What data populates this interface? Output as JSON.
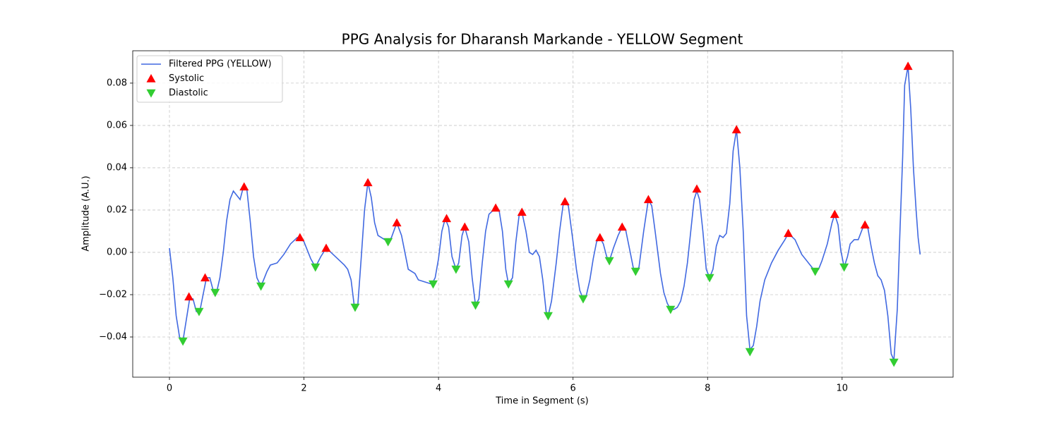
{
  "chart_data": {
    "type": "line",
    "title": "PPG Analysis for Dharansh Markande - YELLOW Segment",
    "x_label": "Time in Segment (s)",
    "y_label": "Amplitude (A.U.)",
    "xlim": [
      -0.546,
      11.65
    ],
    "ylim": [
      -0.059,
      0.0953
    ],
    "xticks": [
      0,
      2,
      4,
      6,
      8,
      10
    ],
    "yticks": [
      {
        "value": -0.04,
        "label": "−0.04"
      },
      {
        "value": -0.02,
        "label": "−0.02"
      },
      {
        "value": 0,
        "label": "0.00"
      },
      0.02,
      0.04,
      0.06,
      0.08
    ],
    "grid": true,
    "legend_loc": "upper left",
    "series": [
      {
        "name": "Filtered PPG (YELLOW)",
        "color": "#4169e1",
        "style": "line",
        "x": [
          0,
          0.05,
          0.1,
          0.15,
          0.2,
          0.25,
          0.3,
          0.35,
          0.4,
          0.45,
          0.5,
          0.55,
          0.6,
          0.65,
          0.7,
          0.75,
          0.8,
          0.85,
          0.9,
          0.95,
          1.0,
          1.05,
          1.1,
          1.15,
          1.2,
          1.25,
          1.3,
          1.36,
          1.4,
          1.45,
          1.5,
          1.6,
          1.7,
          1.8,
          1.9,
          1.94,
          2.0,
          2.1,
          2.17,
          2.25,
          2.33,
          2.4,
          2.5,
          2.6,
          2.65,
          2.7,
          2.75,
          2.8,
          2.85,
          2.9,
          2.95,
          3.0,
          3.05,
          3.1,
          3.2,
          3.25,
          3.3,
          3.38,
          3.45,
          3.5,
          3.55,
          3.65,
          3.7,
          3.8,
          3.9,
          3.95,
          4.0,
          4.05,
          4.1,
          4.15,
          4.2,
          4.26,
          4.3,
          4.35,
          4.39,
          4.45,
          4.5,
          4.55,
          4.6,
          4.65,
          4.7,
          4.75,
          4.85,
          4.9,
          4.95,
          5.0,
          5.04,
          5.1,
          5.15,
          5.2,
          5.24,
          5.3,
          5.35,
          5.4,
          5.45,
          5.5,
          5.55,
          5.6,
          5.63,
          5.68,
          5.75,
          5.8,
          5.85,
          5.88,
          5.93,
          6.0,
          6.05,
          6.1,
          6.15,
          6.2,
          6.25,
          6.3,
          6.35,
          6.4,
          6.45,
          6.5,
          6.54,
          6.6,
          6.67,
          6.73,
          6.78,
          6.85,
          6.9,
          6.93,
          6.98,
          7.05,
          7.12,
          7.17,
          7.22,
          7.3,
          7.35,
          7.4,
          7.45,
          7.5,
          7.55,
          7.6,
          7.65,
          7.7,
          7.75,
          7.8,
          7.84,
          7.88,
          7.93,
          7.98,
          8.03,
          8.08,
          8.13,
          8.18,
          8.23,
          8.28,
          8.33,
          8.38,
          8.43,
          8.48,
          8.53,
          8.58,
          8.63,
          8.68,
          8.73,
          8.78,
          8.85,
          8.95,
          9.05,
          9.15,
          9.2,
          9.3,
          9.4,
          9.5,
          9.6,
          9.65,
          9.7,
          9.78,
          9.85,
          9.89,
          9.94,
          9.98,
          10.03,
          10.08,
          10.12,
          10.18,
          10.24,
          10.3,
          10.34,
          10.38,
          10.43,
          10.48,
          10.53,
          10.58,
          10.63,
          10.68,
          10.73,
          10.77,
          10.82,
          10.86,
          10.9,
          10.93,
          10.98,
          11.02,
          11.06,
          11.1,
          11.13,
          11.16
        ],
        "values": [
          0.002,
          -0.012,
          -0.03,
          -0.04,
          -0.042,
          -0.032,
          -0.022,
          -0.022,
          -0.028,
          -0.028,
          -0.02,
          -0.012,
          -0.012,
          -0.018,
          -0.019,
          -0.012,
          0.0,
          0.015,
          0.025,
          0.029,
          0.027,
          0.025,
          0.031,
          0.03,
          0.015,
          -0.002,
          -0.012,
          -0.016,
          -0.013,
          -0.009,
          -0.006,
          -0.005,
          -0.001,
          0.004,
          0.007,
          0.007,
          0.005,
          -0.003,
          -0.007,
          -0.002,
          0.002,
          0.0,
          -0.003,
          -0.006,
          -0.008,
          -0.013,
          -0.026,
          -0.025,
          -0.003,
          0.02,
          0.033,
          0.026,
          0.014,
          0.008,
          0.006,
          0.005,
          0.007,
          0.014,
          0.008,
          0.0,
          -0.008,
          -0.01,
          -0.013,
          -0.014,
          -0.015,
          -0.012,
          -0.003,
          0.01,
          0.016,
          0.012,
          -0.002,
          -0.008,
          -0.005,
          0.008,
          0.012,
          0.005,
          -0.012,
          -0.025,
          -0.022,
          -0.005,
          0.01,
          0.018,
          0.021,
          0.02,
          0.01,
          -0.008,
          -0.015,
          -0.012,
          0.005,
          0.018,
          0.019,
          0.01,
          0.0,
          -0.001,
          0.001,
          -0.002,
          -0.013,
          -0.028,
          -0.03,
          -0.023,
          -0.005,
          0.01,
          0.022,
          0.024,
          0.022,
          0.005,
          -0.008,
          -0.018,
          -0.022,
          -0.02,
          -0.013,
          -0.003,
          0.005,
          0.007,
          0.004,
          -0.002,
          -0.004,
          0.002,
          0.008,
          0.012,
          0.011,
          0.0,
          -0.008,
          -0.009,
          -0.007,
          0.01,
          0.025,
          0.022,
          0.01,
          -0.01,
          -0.019,
          -0.024,
          -0.027,
          -0.027,
          -0.026,
          -0.023,
          -0.016,
          -0.005,
          0.01,
          0.025,
          0.029,
          0.025,
          0.01,
          -0.008,
          -0.012,
          -0.008,
          0.003,
          0.008,
          0.007,
          0.009,
          0.023,
          0.048,
          0.058,
          0.04,
          0.01,
          -0.03,
          -0.046,
          -0.044,
          -0.035,
          -0.023,
          -0.013,
          -0.005,
          0.001,
          0.006,
          0.009,
          0.006,
          -0.001,
          -0.005,
          -0.009,
          -0.008,
          -0.004,
          0.004,
          0.014,
          0.018,
          0.013,
          0.001,
          -0.007,
          -0.002,
          0.004,
          0.006,
          0.006,
          0.011,
          0.013,
          0.012,
          0.003,
          -0.005,
          -0.011,
          -0.013,
          -0.018,
          -0.03,
          -0.048,
          -0.051,
          -0.027,
          0.01,
          0.045,
          0.079,
          0.088,
          0.068,
          0.04,
          0.02,
          0.007,
          -0.001
        ]
      },
      {
        "name": "Systolic",
        "color": "#ff0000",
        "style": "triangle-up",
        "x": [
          0.29,
          0.53,
          1.11,
          1.94,
          2.33,
          2.95,
          3.38,
          4.12,
          4.39,
          4.85,
          5.24,
          5.88,
          6.4,
          6.73,
          7.12,
          7.84,
          8.43,
          9.2,
          9.89,
          10.34,
          10.98
        ],
        "values": [
          -0.021,
          -0.012,
          0.031,
          0.007,
          0.002,
          0.033,
          0.014,
          0.016,
          0.012,
          0.021,
          0.019,
          0.024,
          0.007,
          0.012,
          0.025,
          0.03,
          0.058,
          0.009,
          0.018,
          0.013,
          0.088
        ]
      },
      {
        "name": "Diastolic",
        "color": "#32cd32",
        "style": "triangle-down",
        "x": [
          0.2,
          0.44,
          0.68,
          1.36,
          2.17,
          2.76,
          3.25,
          3.92,
          4.26,
          4.55,
          5.04,
          5.63,
          6.15,
          6.54,
          6.93,
          7.45,
          8.03,
          8.63,
          9.6,
          10.03,
          10.77
        ],
        "values": [
          -0.042,
          -0.028,
          -0.019,
          -0.016,
          -0.007,
          -0.026,
          0.005,
          -0.015,
          -0.008,
          -0.025,
          -0.015,
          -0.03,
          -0.022,
          -0.004,
          -0.009,
          -0.027,
          -0.012,
          -0.047,
          -0.009,
          -0.007,
          -0.052
        ]
      }
    ]
  }
}
